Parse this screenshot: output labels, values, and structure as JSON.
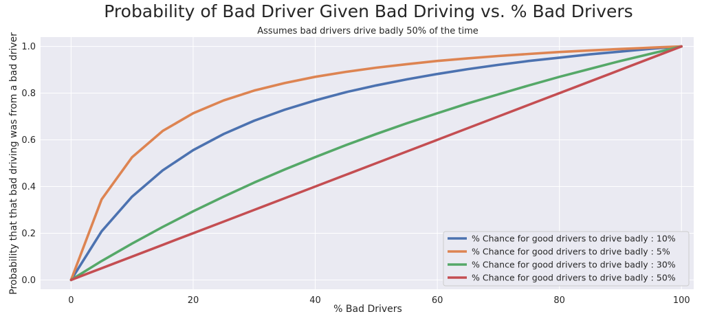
{
  "chart_data": {
    "type": "line",
    "title": "Probability of Bad Driver Given Bad Driving vs. % Bad Drivers",
    "subtitle": "Assumes bad drivers drive badly 50% of the time",
    "xlabel": "% Bad Drivers",
    "ylabel": "Probability that that bad driving was from a bad driver",
    "xlim": [
      -5,
      102
    ],
    "ylim": [
      -0.04,
      1.04
    ],
    "xticks": [
      0,
      20,
      40,
      60,
      80,
      100
    ],
    "yticks": [
      0.0,
      0.2,
      0.4,
      0.6,
      0.8,
      1.0
    ],
    "ytick_labels": [
      "0.0",
      "0.2",
      "0.4",
      "0.6",
      "0.8",
      "1.0"
    ],
    "legend_position": "lower-right",
    "x": [
      0,
      5,
      10,
      15,
      20,
      25,
      30,
      35,
      40,
      45,
      50,
      55,
      60,
      65,
      70,
      75,
      80,
      85,
      90,
      95,
      100
    ],
    "series": [
      {
        "name": "% Chance for good drivers to drive badly : 10%",
        "color": "#4c72b0",
        "values": [
          0.0,
          0.208,
          0.357,
          0.469,
          0.556,
          0.625,
          0.682,
          0.729,
          0.769,
          0.804,
          0.833,
          0.859,
          0.882,
          0.903,
          0.921,
          0.938,
          0.952,
          0.966,
          0.978,
          0.99,
          1.0
        ]
      },
      {
        "name": "% Chance for good drivers to drive badly : 5%",
        "color": "#dd8452",
        "values": [
          0.0,
          0.345,
          0.526,
          0.638,
          0.714,
          0.769,
          0.811,
          0.843,
          0.87,
          0.891,
          0.909,
          0.924,
          0.938,
          0.949,
          0.959,
          0.968,
          0.976,
          0.983,
          0.989,
          0.995,
          1.0
        ]
      },
      {
        "name": "% Chance for good drivers to drive badly : 30%",
        "color": "#55a868",
        "values": [
          0.0,
          0.081,
          0.156,
          0.227,
          0.294,
          0.357,
          0.417,
          0.473,
          0.526,
          0.577,
          0.625,
          0.671,
          0.714,
          0.756,
          0.795,
          0.833,
          0.87,
          0.904,
          0.938,
          0.969,
          1.0
        ]
      },
      {
        "name": "% Chance for good drivers to drive badly : 50%",
        "color": "#c44e52",
        "values": [
          0.0,
          0.05,
          0.1,
          0.15,
          0.2,
          0.25,
          0.3,
          0.35,
          0.4,
          0.45,
          0.5,
          0.55,
          0.6,
          0.65,
          0.7,
          0.75,
          0.8,
          0.85,
          0.9,
          0.95,
          1.0
        ]
      }
    ]
  }
}
